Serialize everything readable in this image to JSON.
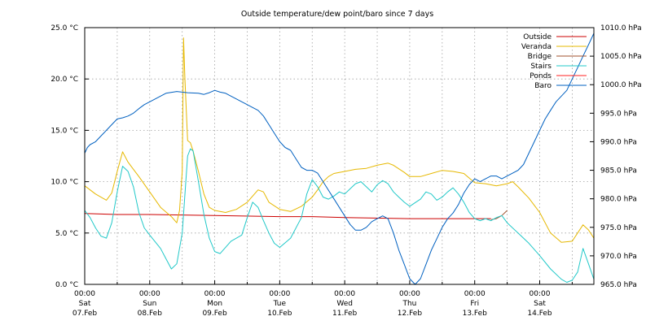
{
  "chart_data": {
    "type": "line",
    "title": "Outside temperature/dew point/baro since 7 days",
    "y_left": {
      "unit": "°C",
      "range": [
        0,
        25
      ],
      "ticks": [
        {
          "value": 0,
          "label": "0.0 °C"
        },
        {
          "value": 5,
          "label": "5.0 °C"
        },
        {
          "value": 10,
          "label": "10.0 °C"
        },
        {
          "value": 15,
          "label": "15.0 °C"
        },
        {
          "value": 20,
          "label": "20.0 °C"
        },
        {
          "value": 25,
          "label": "25.0 °C"
        }
      ]
    },
    "y_right": {
      "unit": "hPa",
      "range": [
        965,
        1010
      ],
      "ticks": [
        {
          "value": 965,
          "label": "965.0 hPa"
        },
        {
          "value": 970,
          "label": "970.0 hPa"
        },
        {
          "value": 975,
          "label": "975.0 hPa"
        },
        {
          "value": 980,
          "label": "980.0 hPa"
        },
        {
          "value": 985,
          "label": "985.0 hPa"
        },
        {
          "value": 990,
          "label": "990.0 hPa"
        },
        {
          "value": 995,
          "label": "995.0 hPa"
        },
        {
          "value": 1000,
          "label": "1000.0 hPa"
        },
        {
          "value": 1005,
          "label": "1005.0 hPa"
        },
        {
          "value": 1010,
          "label": "1010.0 hPa"
        }
      ]
    },
    "x_axis": {
      "unit": "hours since Sat 07.Feb 00:00",
      "range": [
        0,
        188
      ],
      "ticks": [
        {
          "value": 0,
          "time": "00:00",
          "day": "Sat",
          "date": "07.Feb"
        },
        {
          "value": 24,
          "time": "00:00",
          "day": "Sun",
          "date": "08.Feb"
        },
        {
          "value": 48,
          "time": "00:00",
          "day": "Mon",
          "date": "09.Feb"
        },
        {
          "value": 72,
          "time": "00:00",
          "day": "Tue",
          "date": "10.Feb"
        },
        {
          "value": 96,
          "time": "00:00",
          "day": "Wed",
          "date": "11.Feb"
        },
        {
          "value": 120,
          "time": "00:00",
          "day": "Thu",
          "date": "12.Feb"
        },
        {
          "value": 144,
          "time": "00:00",
          "day": "Fri",
          "date": "13.Feb"
        },
        {
          "value": 168,
          "time": "00:00",
          "day": "Sat",
          "date": "14.Feb"
        }
      ]
    },
    "grid": true,
    "legend_position": "top-right",
    "series": [
      {
        "name": "Outside",
        "color": "#cc0000",
        "axis": "left",
        "points": [
          [
            0,
            6.9
          ],
          [
            12,
            6.8
          ],
          [
            24,
            6.8
          ],
          [
            48,
            6.7
          ],
          [
            72,
            6.6
          ],
          [
            84,
            6.6
          ],
          [
            96,
            6.5
          ],
          [
            120,
            6.4
          ],
          [
            144,
            6.4
          ],
          [
            150,
            6.4
          ]
        ]
      },
      {
        "name": "Veranda",
        "color": "#e6b800",
        "axis": "left",
        "points": [
          [
            0,
            9.6
          ],
          [
            4,
            8.8
          ],
          [
            8,
            8.2
          ],
          [
            10,
            8.9
          ],
          [
            12,
            11.0
          ],
          [
            14,
            12.9
          ],
          [
            16,
            11.9
          ],
          [
            18,
            11.2
          ],
          [
            20,
            10.5
          ],
          [
            24,
            9.0
          ],
          [
            28,
            7.5
          ],
          [
            32,
            6.6
          ],
          [
            34,
            6.0
          ],
          [
            35,
            7.2
          ],
          [
            36,
            11.0
          ],
          [
            36.5,
            24.0
          ],
          [
            37,
            20.0
          ],
          [
            38,
            14.0
          ],
          [
            39,
            13.8
          ],
          [
            40,
            13.0
          ],
          [
            42,
            11.0
          ],
          [
            44,
            8.8
          ],
          [
            46,
            7.5
          ],
          [
            48,
            7.2
          ],
          [
            52,
            7.0
          ],
          [
            56,
            7.3
          ],
          [
            60,
            8.0
          ],
          [
            64,
            9.2
          ],
          [
            66,
            9.0
          ],
          [
            68,
            8.0
          ],
          [
            72,
            7.3
          ],
          [
            76,
            7.1
          ],
          [
            80,
            7.6
          ],
          [
            84,
            8.5
          ],
          [
            86,
            9.2
          ],
          [
            88,
            10.0
          ],
          [
            90,
            10.5
          ],
          [
            92,
            10.8
          ],
          [
            96,
            11.0
          ],
          [
            100,
            11.2
          ],
          [
            104,
            11.3
          ],
          [
            108,
            11.6
          ],
          [
            112,
            11.8
          ],
          [
            114,
            11.6
          ],
          [
            118,
            10.9
          ],
          [
            120,
            10.5
          ],
          [
            124,
            10.5
          ],
          [
            128,
            10.8
          ],
          [
            132,
            11.1
          ],
          [
            136,
            11.0
          ],
          [
            140,
            10.8
          ],
          [
            144,
            9.9
          ],
          [
            148,
            9.8
          ],
          [
            152,
            9.6
          ],
          [
            156,
            9.8
          ],
          [
            158,
            10.0
          ],
          [
            160,
            9.5
          ],
          [
            164,
            8.4
          ],
          [
            168,
            7.0
          ],
          [
            172,
            5.0
          ],
          [
            176,
            4.1
          ],
          [
            180,
            4.2
          ],
          [
            184,
            5.8
          ],
          [
            186,
            5.3
          ],
          [
            188,
            4.5
          ]
        ]
      },
      {
        "name": "Bridge",
        "color": "#a0522d",
        "axis": "left",
        "points": [
          [
            150,
            6.3
          ],
          [
            152,
            6.4
          ],
          [
            154,
            6.7
          ],
          [
            156,
            7.2
          ]
        ]
      },
      {
        "name": "Stairs",
        "color": "#20c8c8",
        "axis": "left",
        "points": [
          [
            0,
            7.2
          ],
          [
            2,
            6.5
          ],
          [
            4,
            5.5
          ],
          [
            6,
            4.7
          ],
          [
            8,
            4.5
          ],
          [
            10,
            6.0
          ],
          [
            12,
            9.0
          ],
          [
            14,
            11.5
          ],
          [
            16,
            11.0
          ],
          [
            18,
            9.5
          ],
          [
            20,
            7.0
          ],
          [
            22,
            5.5
          ],
          [
            24,
            4.8
          ],
          [
            28,
            3.5
          ],
          [
            30,
            2.5
          ],
          [
            32,
            1.5
          ],
          [
            34,
            2.0
          ],
          [
            36,
            5.0
          ],
          [
            38,
            12.5
          ],
          [
            39,
            13.2
          ],
          [
            40,
            13.0
          ],
          [
            42,
            10.0
          ],
          [
            44,
            6.8
          ],
          [
            46,
            4.5
          ],
          [
            48,
            3.2
          ],
          [
            50,
            3.0
          ],
          [
            54,
            4.2
          ],
          [
            58,
            4.8
          ],
          [
            60,
            6.5
          ],
          [
            62,
            8.0
          ],
          [
            64,
            7.5
          ],
          [
            66,
            6.2
          ],
          [
            68,
            5.0
          ],
          [
            70,
            4.0
          ],
          [
            72,
            3.6
          ],
          [
            76,
            4.5
          ],
          [
            80,
            6.5
          ],
          [
            82,
            8.8
          ],
          [
            84,
            10.2
          ],
          [
            86,
            9.5
          ],
          [
            88,
            8.5
          ],
          [
            90,
            8.3
          ],
          [
            92,
            8.6
          ],
          [
            94,
            9.0
          ],
          [
            96,
            8.8
          ],
          [
            98,
            9.3
          ],
          [
            100,
            9.8
          ],
          [
            102,
            10.0
          ],
          [
            104,
            9.5
          ],
          [
            106,
            9.0
          ],
          [
            108,
            9.7
          ],
          [
            110,
            10.1
          ],
          [
            112,
            9.8
          ],
          [
            114,
            9.0
          ],
          [
            116,
            8.5
          ],
          [
            118,
            8.0
          ],
          [
            120,
            7.6
          ],
          [
            124,
            8.3
          ],
          [
            126,
            9.0
          ],
          [
            128,
            8.8
          ],
          [
            130,
            8.2
          ],
          [
            132,
            8.5
          ],
          [
            134,
            9.0
          ],
          [
            136,
            9.4
          ],
          [
            138,
            8.8
          ],
          [
            140,
            8.0
          ],
          [
            142,
            7.0
          ],
          [
            144,
            6.4
          ],
          [
            146,
            6.2
          ],
          [
            148,
            6.4
          ],
          [
            150,
            6.2
          ],
          [
            152,
            6.5
          ],
          [
            154,
            6.7
          ],
          [
            156,
            6.0
          ],
          [
            160,
            5.0
          ],
          [
            164,
            4.0
          ],
          [
            168,
            2.8
          ],
          [
            172,
            1.5
          ],
          [
            176,
            0.5
          ],
          [
            178,
            0.2
          ],
          [
            180,
            0.4
          ],
          [
            182,
            1.2
          ],
          [
            184,
            3.5
          ],
          [
            186,
            2.0
          ],
          [
            188,
            0.5
          ]
        ]
      },
      {
        "name": "Ponds",
        "color": "#ff2020",
        "axis": "left",
        "points": []
      },
      {
        "name": "Baro",
        "color": "#0060c0",
        "axis": "right",
        "points": [
          [
            0,
            988
          ],
          [
            1,
            989
          ],
          [
            2,
            989.5
          ],
          [
            4,
            990
          ],
          [
            6,
            991
          ],
          [
            8,
            992
          ],
          [
            10,
            993
          ],
          [
            12,
            994
          ],
          [
            14,
            994.2
          ],
          [
            16,
            994.5
          ],
          [
            18,
            995
          ],
          [
            20,
            995.8
          ],
          [
            22,
            996.5
          ],
          [
            24,
            997
          ],
          [
            28,
            998
          ],
          [
            30,
            998.5
          ],
          [
            34,
            998.8
          ],
          [
            38,
            998.6
          ],
          [
            42,
            998.5
          ],
          [
            44,
            998.3
          ],
          [
            46,
            998.6
          ],
          [
            48,
            999
          ],
          [
            50,
            998.7
          ],
          [
            52,
            998.5
          ],
          [
            54,
            998
          ],
          [
            56,
            997.5
          ],
          [
            58,
            997
          ],
          [
            60,
            996.5
          ],
          [
            62,
            996
          ],
          [
            64,
            995.5
          ],
          [
            66,
            994.5
          ],
          [
            68,
            993
          ],
          [
            70,
            991.5
          ],
          [
            72,
            990
          ],
          [
            74,
            989
          ],
          [
            76,
            988.5
          ],
          [
            78,
            987
          ],
          [
            80,
            985.5
          ],
          [
            82,
            985
          ],
          [
            84,
            985
          ],
          [
            86,
            984.5
          ],
          [
            88,
            983
          ],
          [
            90,
            981.5
          ],
          [
            92,
            980
          ],
          [
            94,
            978.5
          ],
          [
            96,
            977
          ],
          [
            98,
            975.5
          ],
          [
            100,
            974.5
          ],
          [
            102,
            974.5
          ],
          [
            104,
            975
          ],
          [
            106,
            976
          ],
          [
            108,
            976.5
          ],
          [
            110,
            977
          ],
          [
            112,
            976.5
          ],
          [
            114,
            974
          ],
          [
            116,
            971
          ],
          [
            118,
            968.5
          ],
          [
            120,
            966
          ],
          [
            122,
            965
          ],
          [
            124,
            966
          ],
          [
            126,
            968.5
          ],
          [
            128,
            971
          ],
          [
            130,
            973
          ],
          [
            132,
            975
          ],
          [
            134,
            976.5
          ],
          [
            136,
            977.5
          ],
          [
            138,
            979
          ],
          [
            140,
            981
          ],
          [
            142,
            982.5
          ],
          [
            144,
            983.5
          ],
          [
            146,
            983
          ],
          [
            148,
            983.5
          ],
          [
            150,
            984
          ],
          [
            152,
            984
          ],
          [
            154,
            983.5
          ],
          [
            156,
            984
          ],
          [
            158,
            984.5
          ],
          [
            160,
            985
          ],
          [
            162,
            986
          ],
          [
            164,
            988
          ],
          [
            166,
            990
          ],
          [
            168,
            992
          ],
          [
            170,
            994
          ],
          [
            172,
            995.5
          ],
          [
            174,
            997
          ],
          [
            176,
            998
          ],
          [
            178,
            999
          ],
          [
            180,
            1001
          ],
          [
            182,
            1003
          ],
          [
            184,
            1005
          ],
          [
            186,
            1007
          ],
          [
            188,
            1009
          ]
        ]
      }
    ]
  }
}
